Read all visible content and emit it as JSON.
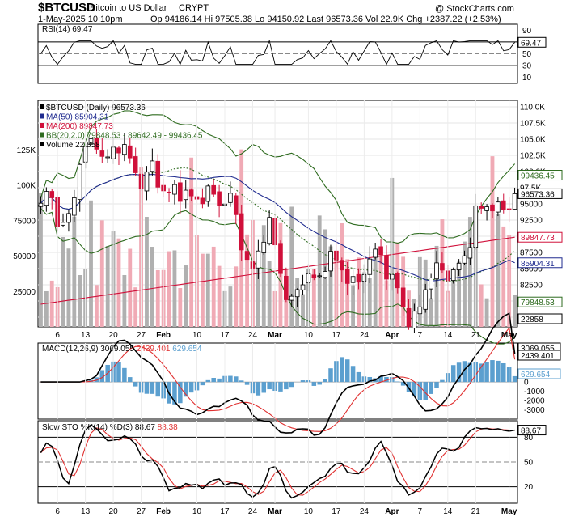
{
  "header": {
    "symbol": "$BTCUSD",
    "name": "Bitcoin to US Dollar",
    "exchange": "CRYPT",
    "datetime": "1-May-2025 10:10pm",
    "stats": "Op 94186.14 Hi 97505.38 Lo 94150.92 Last 96573.36 Vol 22.9K Chg +2387.22 (+2.53%)",
    "watermark": "@ StockCharts.com"
  },
  "colors": {
    "up": "#000000",
    "down": "#d0103a",
    "ma50": "#1f2b8f",
    "ma200": "#d0103a",
    "bb": "#2e6b1f",
    "bbmid": "#2e6b1f",
    "vol_up": "#b0b0b0",
    "vol_down": "#f0aab5",
    "macd": "#000000",
    "signal": "#e03030",
    "hist": "#5b9fcf"
  },
  "rsi": {
    "label": "RSI(14) 69.47",
    "last": "69.47",
    "levels": [
      "90",
      "70",
      "50",
      "30",
      "10"
    ]
  },
  "price": {
    "legend": [
      {
        "text": "$BTCUSD (Daily) 96573.36",
        "color": "#000000"
      },
      {
        "text": "MA(50) 85904.31",
        "color": "#1f2b8f"
      },
      {
        "text": "MA(200) 89847.73",
        "color": "#d0103a"
      },
      {
        "text": "BB(20,2.0) 79848.53 - 89642.49 - 99436.45",
        "color": "#2e6b1f"
      },
      {
        "text": "Volume 22,858",
        "color": "#000000"
      }
    ],
    "axis_labels": [
      "110.0K",
      "107.5K",
      "105.0K",
      "102.5K",
      "100.0K",
      "97.5K",
      "95000",
      "92500",
      "90000",
      "87500",
      "85000",
      "82500",
      "80000",
      "77500"
    ],
    "tags": [
      {
        "text": "99436.45",
        "value": 99436.45,
        "color": "#2e6b1f"
      },
      {
        "text": "96573.36",
        "value": 96573.36,
        "color": "#000000"
      },
      {
        "text": "89847.73",
        "value": 89847.73,
        "color": "#d0103a"
      },
      {
        "text": "85904.31",
        "value": 85904.31,
        "color": "#1f2b8f"
      },
      {
        "text": "79848.53",
        "value": 79848.53,
        "color": "#2e6b1f"
      },
      {
        "text": "22858",
        "value": 22858,
        "color": "#000000"
      }
    ],
    "volume_labels": [
      "125K",
      "100K",
      "75000",
      "50000",
      "25000"
    ]
  },
  "macd": {
    "label_prefix": "MACD(12,26,9)",
    "macd_value": "3069.055",
    "signal_value": "2439.401",
    "hist_value": "629.654",
    "axis_labels": [
      "3000",
      "2000",
      "1000",
      "0",
      "-1000",
      "-2000",
      "-3000"
    ]
  },
  "sto": {
    "label_prefix": "Slow STO %K(14) %D(3)",
    "k_value": "88.67",
    "d_value": "88.38",
    "axis_labels": [
      "80",
      "50",
      "20"
    ]
  },
  "x_labels": [
    "6",
    "13",
    "20",
    "27",
    "Feb",
    "10",
    "17",
    "24",
    "Mar",
    "10",
    "17",
    "24",
    "Apr",
    "7",
    "14",
    "21",
    "May"
  ],
  "chart_data": {
    "type": "candlestick",
    "title": "$BTCUSD Bitcoin to US Dollar CRYPT",
    "x": [
      "2025-01-01",
      "2025-05-01"
    ],
    "ylim": [
      76000,
      111000
    ],
    "ohlc_close_path": [
      94500,
      97500,
      93000,
      91000,
      94800,
      102000,
      104000,
      105000,
      101000,
      103000,
      104500,
      102500,
      100000,
      97500,
      101500,
      98000,
      96000,
      97500,
      96500,
      96000,
      95500,
      97000,
      96000,
      95000,
      96000,
      91500,
      86000,
      84500,
      90000,
      92000,
      86500,
      81000,
      79500,
      83500,
      84000,
      82500,
      86000,
      87000,
      85000,
      83500,
      82000,
      85000,
      87500,
      87000,
      84000,
      82500,
      78500,
      76500,
      79000,
      83500,
      85000,
      84500,
      84000,
      85500,
      87500,
      93500,
      94500,
      95000,
      94000,
      94200,
      96573.36
    ],
    "last_values": {
      "close": 96573.36,
      "ma50": 85904.31,
      "ma200": 89847.73,
      "bb_upper": 99436.45,
      "bb_mid": 89642.49,
      "bb_lower": 79848.53,
      "volume": 22858
    },
    "rsi_last": 69.47,
    "macd_last": {
      "macd": 3069.055,
      "signal": 2439.401,
      "hist": 629.654
    },
    "sto_last": {
      "k": 88.67,
      "d": 88.38
    }
  }
}
